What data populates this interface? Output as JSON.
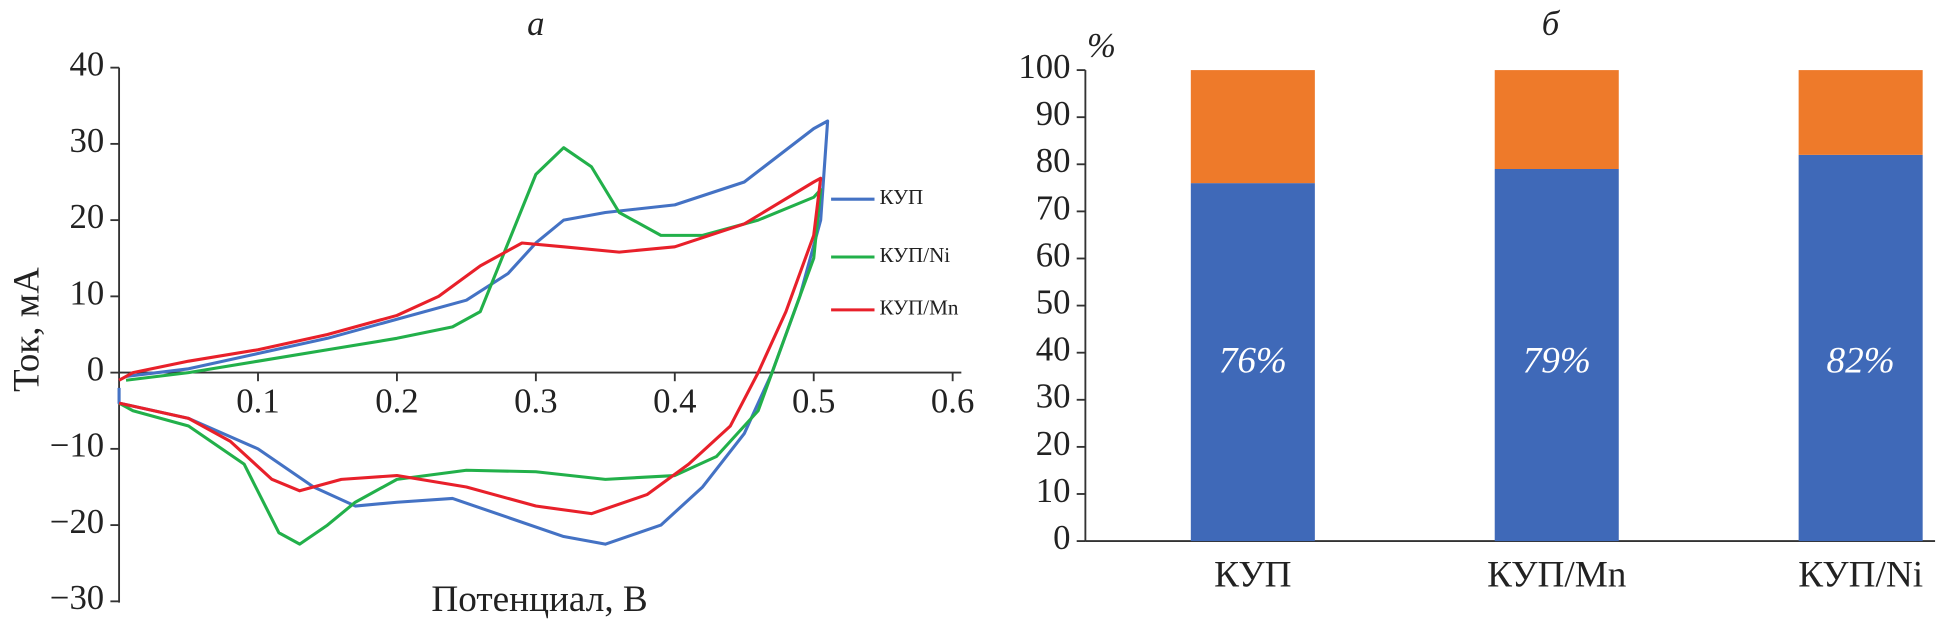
{
  "chart_data": [
    {
      "type": "line",
      "title": "а",
      "x_label": "Потенциал, В",
      "y_label": "Ток, мА",
      "xlim": [
        0,
        0.6
      ],
      "xticks": [
        0.1,
        0.2,
        0.3,
        0.4,
        0.5,
        0.6
      ],
      "ylim": [
        -30,
        40
      ],
      "yticks": [
        {
          "value": -30,
          "label": "−30"
        },
        {
          "value": -20,
          "label": "−20"
        },
        {
          "value": -10,
          "label": "−10"
        },
        0,
        10,
        20,
        30,
        40
      ],
      "series": [
        {
          "name": "КУП",
          "color": "#4472c4",
          "x": [
            0.005,
            0.05,
            0.1,
            0.15,
            0.2,
            0.25,
            0.28,
            0.3,
            0.32,
            0.35,
            0.4,
            0.45,
            0.5,
            0.51,
            0.505,
            0.49,
            0.47,
            0.45,
            0.42,
            0.39,
            0.35,
            0.32,
            0.28,
            0.24,
            0.2,
            0.17,
            0.14,
            0.1,
            0.05,
            0.0,
            0.0
          ],
          "values": [
            -0.5,
            0.5,
            2.5,
            4.5,
            7,
            9.5,
            13,
            17,
            20,
            21,
            22,
            25,
            32,
            33,
            20,
            10,
            0,
            -8,
            -15,
            -20,
            -22.5,
            -21.5,
            -19,
            -16.5,
            -17,
            -17.5,
            -15,
            -10,
            -6,
            -4,
            -2
          ]
        },
        {
          "name": "КУП/Ni",
          "color": "#22b04a",
          "x": [
            0.005,
            0.05,
            0.1,
            0.15,
            0.2,
            0.24,
            0.26,
            0.28,
            0.3,
            0.32,
            0.34,
            0.36,
            0.39,
            0.42,
            0.46,
            0.5,
            0.505,
            0.5,
            0.48,
            0.46,
            0.43,
            0.4,
            0.35,
            0.3,
            0.25,
            0.2,
            0.17,
            0.15,
            0.13,
            0.115,
            0.09,
            0.05,
            0.01,
            0.0
          ],
          "values": [
            -1,
            0,
            1.5,
            3,
            4.5,
            6,
            8,
            17,
            26,
            29.5,
            27,
            21,
            18,
            18,
            20,
            23,
            24,
            15,
            5,
            -5,
            -11,
            -13.5,
            -14,
            -13,
            -12.8,
            -14,
            -17,
            -20,
            -22.5,
            -21,
            -12,
            -7,
            -5,
            -4
          ]
        },
        {
          "name": "КУП/Mn",
          "color": "#e8202a",
          "x": [
            0.0,
            0.01,
            0.05,
            0.1,
            0.15,
            0.2,
            0.23,
            0.26,
            0.29,
            0.32,
            0.36,
            0.4,
            0.45,
            0.5,
            0.505,
            0.5,
            0.48,
            0.46,
            0.44,
            0.41,
            0.38,
            0.34,
            0.3,
            0.25,
            0.2,
            0.16,
            0.13,
            0.11,
            0.08,
            0.05,
            0.0
          ],
          "values": [
            -1,
            0,
            1.5,
            3,
            5,
            7.5,
            10,
            14,
            17,
            16.5,
            15.8,
            16.5,
            19.5,
            25,
            25.5,
            18,
            8,
            0,
            -7,
            -12,
            -16,
            -18.5,
            -17.5,
            -15,
            -13.5,
            -14,
            -15.5,
            -14,
            -9,
            -6,
            -4
          ]
        }
      ]
    },
    {
      "type": "bar",
      "stacked": true,
      "title": "б",
      "y_label": "%",
      "categories": [
        "КУП",
        "КУП/Mn",
        "КУП/Ni"
      ],
      "ylim": [
        0,
        100
      ],
      "yticks": [
        0,
        10,
        20,
        30,
        40,
        50,
        60,
        70,
        80,
        90,
        100
      ],
      "series": [
        {
          "color": "#3f69b8",
          "values": [
            76,
            79,
            82
          ],
          "value_labels": [
            "76%",
            "79%",
            "82%"
          ]
        },
        {
          "color": "#ee7a2a",
          "values": [
            24,
            21,
            18
          ]
        }
      ]
    }
  ]
}
